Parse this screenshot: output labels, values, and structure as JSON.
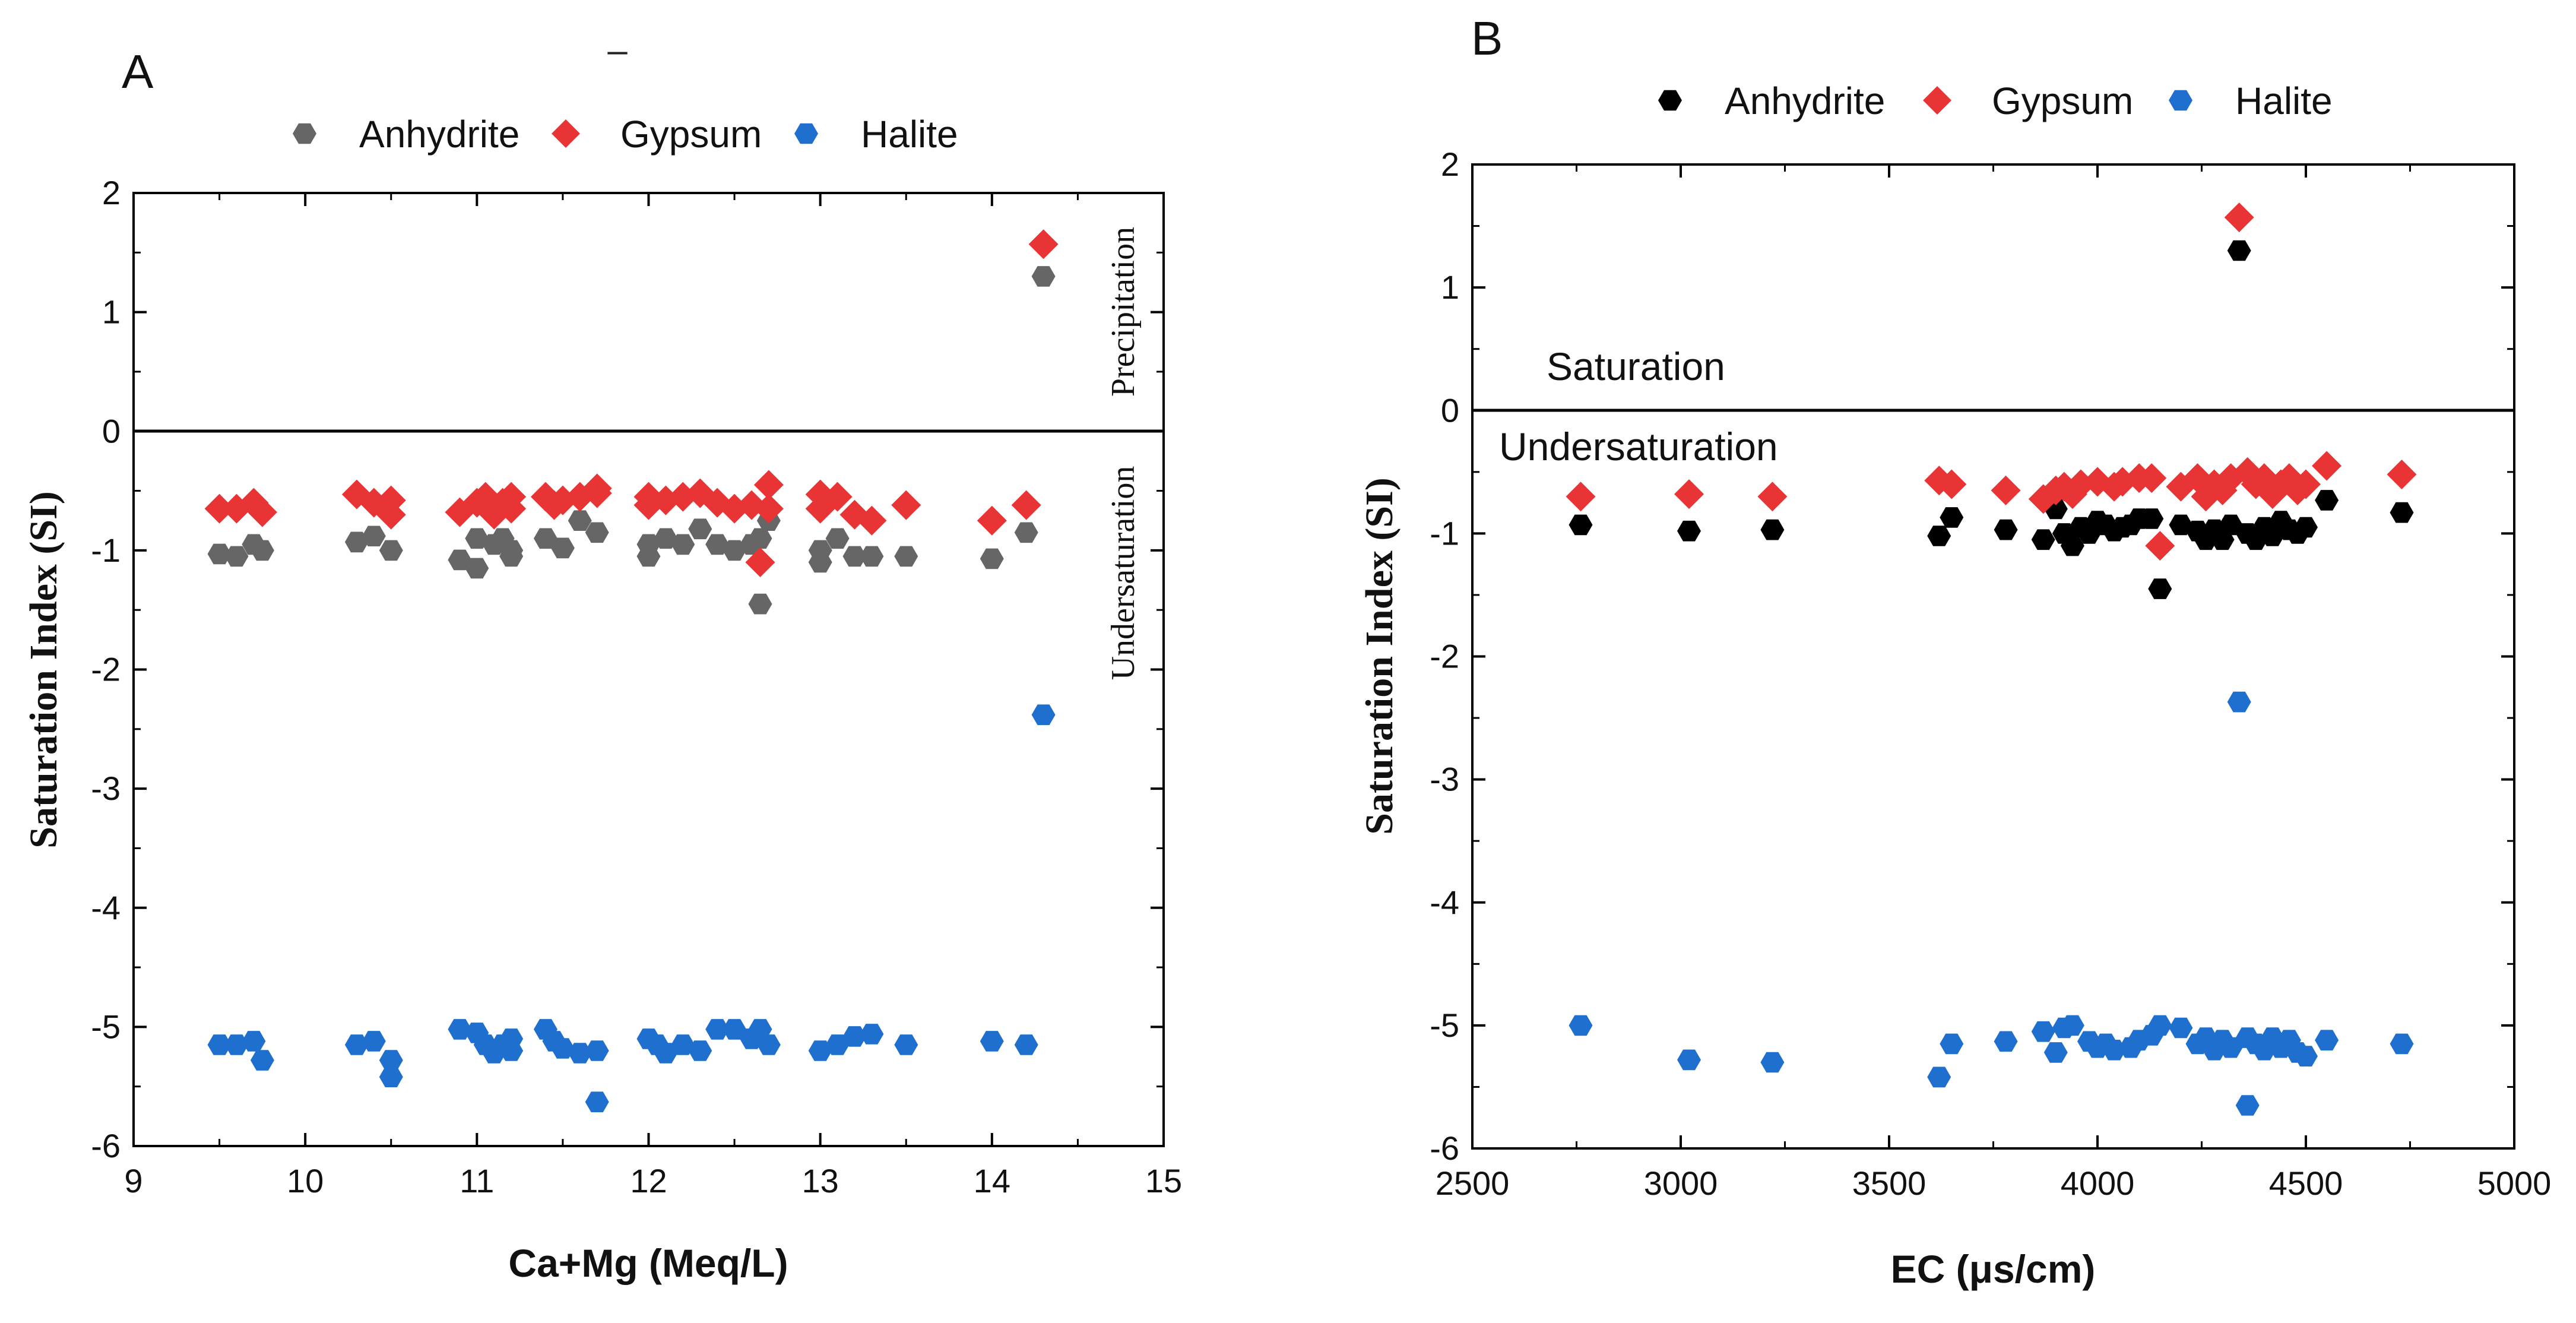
{
  "figure": {
    "dash_mark": "–"
  },
  "chart_data": [
    {
      "panel_label": "A",
      "type": "scatter",
      "title": "",
      "xlabel": "Ca+Mg (Meq/L)",
      "ylabel": "Saturation Index (SI)",
      "xlim": [
        9,
        15
      ],
      "ylim": [
        -6,
        2
      ],
      "xticks": [
        9,
        10,
        11,
        12,
        13,
        14,
        15
      ],
      "yticks": [
        -6,
        -5,
        -4,
        -3,
        -2,
        -1,
        0,
        1,
        2
      ],
      "reference_line_y": 0,
      "annotations": [
        "Precipitation",
        "Undersaturation"
      ],
      "legend": {
        "placement": "top",
        "entries": [
          "Anhydrite",
          "Gypsum",
          "Halite"
        ]
      },
      "series": [
        {
          "name": "Anhydrite",
          "marker": "hexagon",
          "color": "#666666",
          "points": [
            [
              9.5,
              -1.03
            ],
            [
              9.6,
              -1.05
            ],
            [
              9.7,
              -0.95
            ],
            [
              9.75,
              -1.0
            ],
            [
              10.3,
              -0.93
            ],
            [
              10.4,
              -0.88
            ],
            [
              10.5,
              -1.0
            ],
            [
              10.9,
              -1.08
            ],
            [
              11.0,
              -1.15
            ],
            [
              11.0,
              -0.9
            ],
            [
              11.1,
              -0.95
            ],
            [
              11.15,
              -0.9
            ],
            [
              11.2,
              -1.0
            ],
            [
              11.2,
              -1.05
            ],
            [
              11.4,
              -0.9
            ],
            [
              11.5,
              -0.98
            ],
            [
              11.6,
              -0.75
            ],
            [
              11.7,
              -0.85
            ],
            [
              12.0,
              -1.05
            ],
            [
              12.0,
              -0.95
            ],
            [
              12.1,
              -0.9
            ],
            [
              12.2,
              -0.95
            ],
            [
              12.3,
              -0.82
            ],
            [
              12.4,
              -0.95
            ],
            [
              12.5,
              -1.0
            ],
            [
              12.6,
              -0.95
            ],
            [
              12.65,
              -0.9
            ],
            [
              12.7,
              -0.75
            ],
            [
              12.65,
              -1.45
            ],
            [
              13.0,
              -1.1
            ],
            [
              13.0,
              -1.0
            ],
            [
              13.1,
              -0.9
            ],
            [
              13.2,
              -1.05
            ],
            [
              13.3,
              -1.05
            ],
            [
              13.5,
              -1.05
            ],
            [
              14.0,
              -1.07
            ],
            [
              14.2,
              -0.85
            ],
            [
              14.3,
              1.3
            ]
          ]
        },
        {
          "name": "Gypsum",
          "marker": "diamond",
          "color": "#e83434",
          "points": [
            [
              9.5,
              -0.65
            ],
            [
              9.6,
              -0.65
            ],
            [
              9.7,
              -0.6
            ],
            [
              9.75,
              -0.68
            ],
            [
              10.3,
              -0.53
            ],
            [
              10.4,
              -0.6
            ],
            [
              10.5,
              -0.58
            ],
            [
              10.5,
              -0.7
            ],
            [
              10.9,
              -0.68
            ],
            [
              11.0,
              -0.6
            ],
            [
              11.05,
              -0.55
            ],
            [
              11.1,
              -0.7
            ],
            [
              11.15,
              -0.6
            ],
            [
              11.2,
              -0.55
            ],
            [
              11.2,
              -0.65
            ],
            [
              11.4,
              -0.55
            ],
            [
              11.45,
              -0.62
            ],
            [
              11.5,
              -0.58
            ],
            [
              11.6,
              -0.55
            ],
            [
              11.7,
              -0.48
            ],
            [
              11.7,
              -0.52
            ],
            [
              12.0,
              -0.55
            ],
            [
              12.0,
              -0.62
            ],
            [
              12.1,
              -0.58
            ],
            [
              12.2,
              -0.55
            ],
            [
              12.3,
              -0.52
            ],
            [
              12.4,
              -0.6
            ],
            [
              12.5,
              -0.65
            ],
            [
              12.6,
              -0.62
            ],
            [
              12.7,
              -0.45
            ],
            [
              12.65,
              -1.1
            ],
            [
              12.7,
              -0.65
            ],
            [
              13.0,
              -0.53
            ],
            [
              13.0,
              -0.65
            ],
            [
              13.1,
              -0.55
            ],
            [
              13.2,
              -0.7
            ],
            [
              13.3,
              -0.75
            ],
            [
              13.5,
              -0.62
            ],
            [
              14.0,
              -0.75
            ],
            [
              14.2,
              -0.62
            ],
            [
              14.3,
              1.57
            ]
          ]
        },
        {
          "name": "Halite",
          "marker": "hexagon",
          "color": "#1f6fce",
          "points": [
            [
              9.5,
              -5.15
            ],
            [
              9.6,
              -5.15
            ],
            [
              9.7,
              -5.12
            ],
            [
              9.75,
              -5.28
            ],
            [
              10.3,
              -5.15
            ],
            [
              10.4,
              -5.12
            ],
            [
              10.5,
              -5.28
            ],
            [
              10.5,
              -5.42
            ],
            [
              10.9,
              -5.02
            ],
            [
              11.0,
              -5.05
            ],
            [
              11.05,
              -5.15
            ],
            [
              11.1,
              -5.22
            ],
            [
              11.15,
              -5.15
            ],
            [
              11.2,
              -5.1
            ],
            [
              11.2,
              -5.2
            ],
            [
              11.4,
              -5.02
            ],
            [
              11.45,
              -5.12
            ],
            [
              11.5,
              -5.18
            ],
            [
              11.6,
              -5.22
            ],
            [
              11.7,
              -5.2
            ],
            [
              11.7,
              -5.63
            ],
            [
              12.0,
              -5.1
            ],
            [
              12.05,
              -5.15
            ],
            [
              12.1,
              -5.22
            ],
            [
              12.2,
              -5.15
            ],
            [
              12.3,
              -5.2
            ],
            [
              12.4,
              -5.02
            ],
            [
              12.5,
              -5.02
            ],
            [
              12.6,
              -5.1
            ],
            [
              12.65,
              -5.02
            ],
            [
              12.7,
              -5.15
            ],
            [
              13.0,
              -5.2
            ],
            [
              13.1,
              -5.15
            ],
            [
              13.2,
              -5.08
            ],
            [
              13.3,
              -5.06
            ],
            [
              13.5,
              -5.15
            ],
            [
              14.0,
              -5.12
            ],
            [
              14.2,
              -5.15
            ],
            [
              14.3,
              -2.38
            ]
          ]
        }
      ]
    },
    {
      "panel_label": "B",
      "type": "scatter",
      "title": "",
      "xlabel": "EC (μs/cm)",
      "ylabel": "Saturation Index (SI)",
      "xlim": [
        2500,
        5000
      ],
      "ylim": [
        -6,
        2
      ],
      "xticks": [
        2500,
        3000,
        3500,
        4000,
        4500,
        5000
      ],
      "yticks": [
        -6,
        -5,
        -4,
        -3,
        -2,
        -1,
        0,
        1,
        2
      ],
      "reference_line_y": 0,
      "annotations": [
        "Saturation",
        "Undersaturation"
      ],
      "legend": {
        "placement": "top",
        "entries": [
          "Anhydrite",
          "Gypsum",
          "Halite"
        ]
      },
      "series": [
        {
          "name": "Anhydrite",
          "marker": "hexagon",
          "color": "#000000",
          "points": [
            [
              2760,
              -0.93
            ],
            [
              3020,
              -0.98
            ],
            [
              3220,
              -0.97
            ],
            [
              3620,
              -1.02
            ],
            [
              3650,
              -0.87
            ],
            [
              3780,
              -0.97
            ],
            [
              3870,
              -1.05
            ],
            [
              3900,
              -0.8
            ],
            [
              3920,
              -1.0
            ],
            [
              3940,
              -1.1
            ],
            [
              3960,
              -0.95
            ],
            [
              3980,
              -1.0
            ],
            [
              4000,
              -0.9
            ],
            [
              4020,
              -0.93
            ],
            [
              4040,
              -0.98
            ],
            [
              4060,
              -0.95
            ],
            [
              4080,
              -0.93
            ],
            [
              4100,
              -0.88
            ],
            [
              4130,
              -0.88
            ],
            [
              4150,
              -1.45
            ],
            [
              4200,
              -0.93
            ],
            [
              4240,
              -0.98
            ],
            [
              4260,
              -1.05
            ],
            [
              4280,
              -0.97
            ],
            [
              4300,
              -1.05
            ],
            [
              4320,
              -0.93
            ],
            [
              4340,
              1.3
            ],
            [
              4360,
              -1.0
            ],
            [
              4380,
              -1.05
            ],
            [
              4400,
              -0.95
            ],
            [
              4420,
              -1.02
            ],
            [
              4440,
              -0.9
            ],
            [
              4460,
              -0.97
            ],
            [
              4480,
              -1.0
            ],
            [
              4500,
              -0.95
            ],
            [
              4550,
              -0.73
            ],
            [
              4730,
              -0.83
            ]
          ]
        },
        {
          "name": "Gypsum",
          "marker": "diamond",
          "color": "#e83434",
          "points": [
            [
              2760,
              -0.7
            ],
            [
              3020,
              -0.68
            ],
            [
              3220,
              -0.7
            ],
            [
              3620,
              -0.57
            ],
            [
              3650,
              -0.6
            ],
            [
              3780,
              -0.65
            ],
            [
              3870,
              -0.72
            ],
            [
              3900,
              -0.65
            ],
            [
              3920,
              -0.62
            ],
            [
              3940,
              -0.68
            ],
            [
              3960,
              -0.6
            ],
            [
              4000,
              -0.58
            ],
            [
              4040,
              -0.62
            ],
            [
              4060,
              -0.58
            ],
            [
              4100,
              -0.55
            ],
            [
              4130,
              -0.55
            ],
            [
              4150,
              -1.1
            ],
            [
              4200,
              -0.62
            ],
            [
              4240,
              -0.55
            ],
            [
              4260,
              -0.7
            ],
            [
              4280,
              -0.6
            ],
            [
              4300,
              -0.65
            ],
            [
              4320,
              -0.55
            ],
            [
              4340,
              1.57
            ],
            [
              4360,
              -0.5
            ],
            [
              4380,
              -0.6
            ],
            [
              4400,
              -0.55
            ],
            [
              4420,
              -0.68
            ],
            [
              4440,
              -0.6
            ],
            [
              4460,
              -0.55
            ],
            [
              4480,
              -0.65
            ],
            [
              4500,
              -0.6
            ],
            [
              4550,
              -0.45
            ],
            [
              4730,
              -0.52
            ]
          ]
        },
        {
          "name": "Halite",
          "marker": "hexagon",
          "color": "#1f6fce",
          "points": [
            [
              2760,
              -5.0
            ],
            [
              3020,
              -5.28
            ],
            [
              3220,
              -5.3
            ],
            [
              3620,
              -5.42
            ],
            [
              3650,
              -5.15
            ],
            [
              3780,
              -5.13
            ],
            [
              3870,
              -5.05
            ],
            [
              3900,
              -5.22
            ],
            [
              3920,
              -5.02
            ],
            [
              3940,
              -5.0
            ],
            [
              3980,
              -5.13
            ],
            [
              4000,
              -5.18
            ],
            [
              4020,
              -5.15
            ],
            [
              4040,
              -5.2
            ],
            [
              4080,
              -5.18
            ],
            [
              4100,
              -5.12
            ],
            [
              4130,
              -5.08
            ],
            [
              4150,
              -5.0
            ],
            [
              4200,
              -5.02
            ],
            [
              4240,
              -5.15
            ],
            [
              4260,
              -5.1
            ],
            [
              4280,
              -5.2
            ],
            [
              4300,
              -5.12
            ],
            [
              4320,
              -5.18
            ],
            [
              4340,
              -2.37
            ],
            [
              4360,
              -5.1
            ],
            [
              4360,
              -5.65
            ],
            [
              4380,
              -5.15
            ],
            [
              4400,
              -5.2
            ],
            [
              4420,
              -5.1
            ],
            [
              4440,
              -5.18
            ],
            [
              4460,
              -5.12
            ],
            [
              4480,
              -5.22
            ],
            [
              4500,
              -5.25
            ],
            [
              4550,
              -5.12
            ],
            [
              4730,
              -5.15
            ]
          ]
        }
      ]
    }
  ]
}
